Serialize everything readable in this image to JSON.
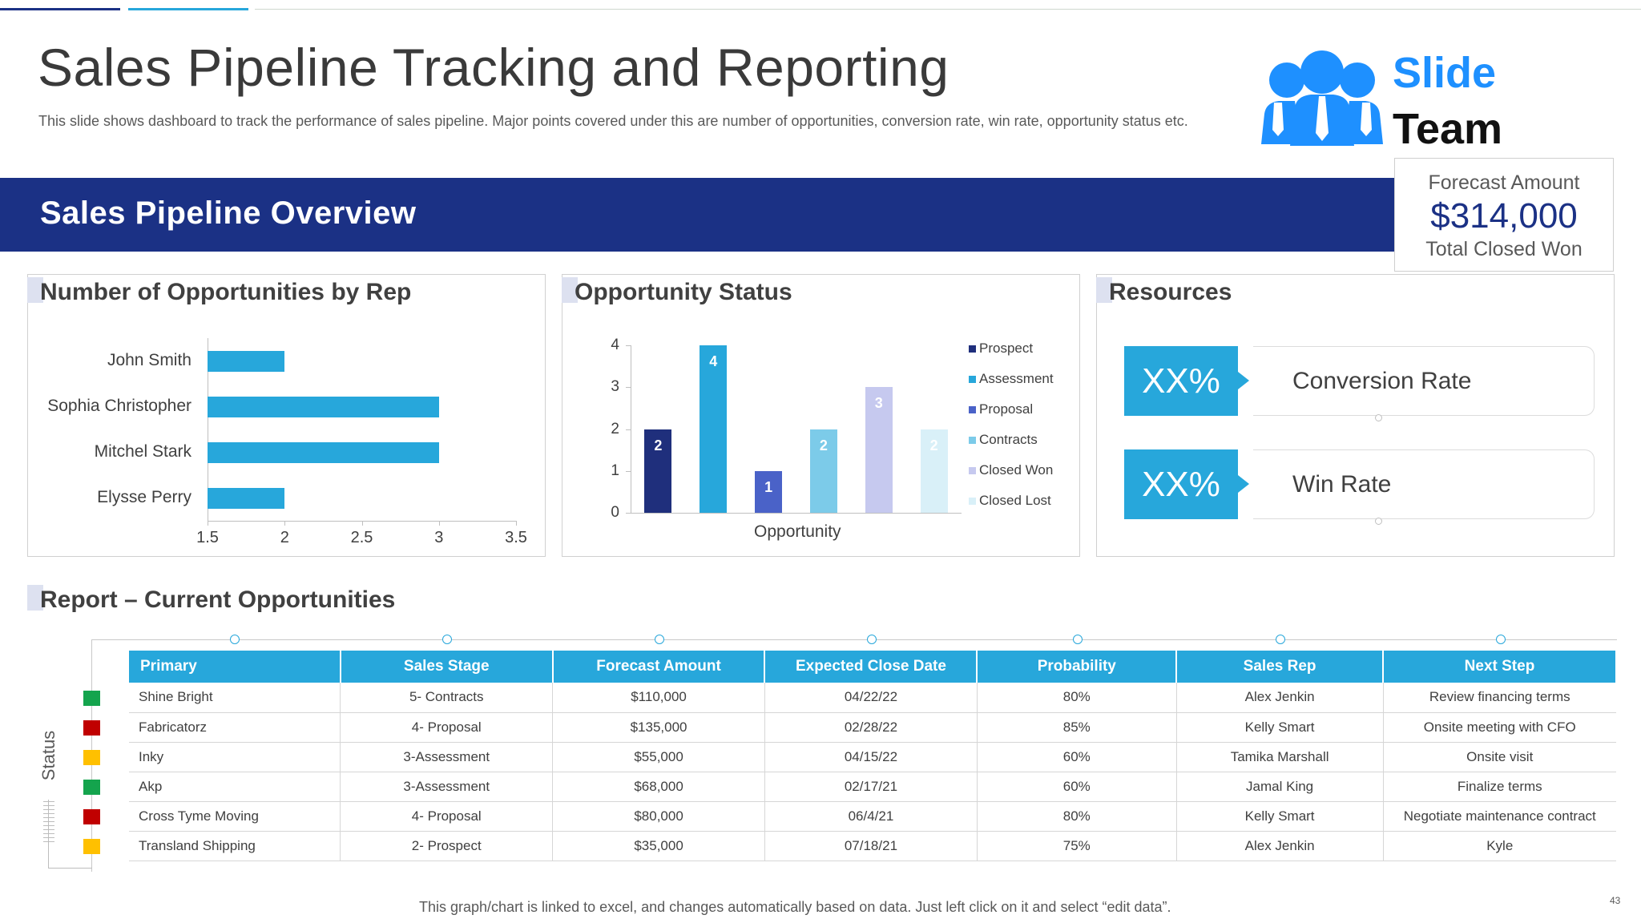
{
  "title": "Sales Pipeline Tracking and Reporting",
  "subtitle": "This slide shows dashboard to track the performance of sales pipeline. Major points covered under this are number of opportunities, conversion rate, win rate, opportunity status etc.",
  "logo": {
    "line1": "Slide",
    "line2": "Team"
  },
  "banner": {
    "title": "Sales Pipeline Overview"
  },
  "forecast": {
    "label": "Forecast Amount",
    "value": "$314,000",
    "sub": "Total Closed Won"
  },
  "colors": {
    "navy": "#1b3185",
    "cyan": "#27a7db",
    "green": "#14a44d",
    "red": "#c00000",
    "yellow": "#ffc000"
  },
  "panels": {
    "reps": {
      "title": "Number of Opportunities by Rep"
    },
    "status": {
      "title": "Opportunity Status",
      "xlabel": "Opportunity"
    },
    "resources": {
      "title": "Resources"
    }
  },
  "chart_data": [
    {
      "type": "bar",
      "orientation": "horizontal",
      "title": "Number of Opportunities by Rep",
      "categories": [
        "John Smith",
        "Sophia Christopher",
        "Mitchel Stark",
        "Elysse Perry"
      ],
      "values": [
        2,
        3,
        3,
        2
      ],
      "xlim": [
        1.5,
        3.5
      ],
      "xticks": [
        "1.5",
        "2",
        "2.5",
        "3",
        "3.5"
      ]
    },
    {
      "type": "bar",
      "title": "Opportunity Status",
      "xlabel": "Opportunity",
      "categories": [
        "Prospect",
        "Assessment",
        "Proposal",
        "Contracts",
        "Closed Won",
        "Closed Lost"
      ],
      "values": [
        2,
        4,
        1,
        2,
        3,
        2
      ],
      "colors": [
        "#1f2f7c",
        "#27a7db",
        "#4a62c8",
        "#7ccbe9",
        "#c6c9ef",
        "#d9f0f8"
      ],
      "ylim": [
        0,
        4
      ],
      "yticks": [
        "0",
        "1",
        "2",
        "3",
        "4"
      ],
      "legend": "right"
    }
  ],
  "resources": [
    {
      "value": "XX%",
      "label": "Conversion Rate"
    },
    {
      "value": "XX%",
      "label": "Win Rate"
    }
  ],
  "report": {
    "title": "Report – Current Opportunities",
    "status_label": "Status",
    "headers": [
      "Primary",
      "Sales Stage",
      "Forecast Amount",
      "Expected Close Date",
      "Probability",
      "Sales Rep",
      "Next Step"
    ],
    "rows": [
      {
        "status": "green",
        "cells": [
          "Shine Bright",
          "5- Contracts",
          "$110,000",
          "04/22/22",
          "80%",
          "Alex Jenkin",
          "Review financing terms"
        ]
      },
      {
        "status": "red",
        "cells": [
          "Fabricatorz",
          "4- Proposal",
          "$135,000",
          "02/28/22",
          "85%",
          "Kelly Smart",
          "Onsite meeting  with CFO"
        ]
      },
      {
        "status": "yellow",
        "cells": [
          "Inky",
          "3-Assessment",
          "$55,000",
          "04/15/22",
          "60%",
          "Tamika  Marshall",
          "Onsite visit"
        ]
      },
      {
        "status": "green",
        "cells": [
          "Akp",
          "3-Assessment",
          "$68,000",
          "02/17/21",
          "60%",
          "Jamal King",
          "Finalize terms"
        ]
      },
      {
        "status": "red",
        "cells": [
          "Cross Tyme Moving",
          "4- Proposal",
          "$80,000",
          "06/4/21",
          "80%",
          "Kelly Smart",
          "Negotiate maintenance contract"
        ]
      },
      {
        "status": "yellow",
        "cells": [
          "Transland Shipping",
          "2- Prospect",
          "$35,000",
          "07/18/21",
          "75%",
          "Alex Jenkin",
          "Kyle"
        ]
      }
    ]
  },
  "footnote": "This graph/chart is linked to excel,  and changes automatically based on data. Just left click on it and select “edit data”.",
  "page_number": "43"
}
